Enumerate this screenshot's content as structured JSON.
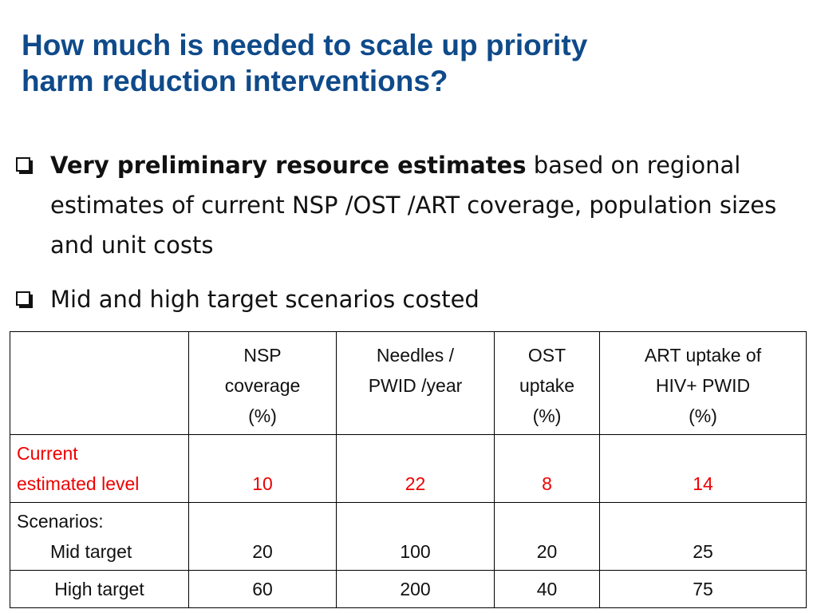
{
  "title": {
    "line1": "How much is needed to scale up priority",
    "line2": "harm reduction interventions?"
  },
  "bullets": [
    {
      "icon": "checkbox-icon",
      "bold_text": "Very preliminary resource estimates",
      "text": " based on regional estimates of current NSP /OST /ART coverage, population sizes and unit costs"
    },
    {
      "icon": "checkbox-icon",
      "bold_text": "",
      "text": "Mid and high target scenarios costed"
    }
  ],
  "table": {
    "headers": [
      {
        "lines": [
          ""
        ]
      },
      {
        "lines": [
          "NSP",
          "coverage",
          "(%)"
        ]
      },
      {
        "lines": [
          "Needles /",
          "PWID /year"
        ]
      },
      {
        "lines": [
          "OST",
          "uptake",
          "(%)"
        ]
      },
      {
        "lines": [
          "ART uptake of",
          "HIV+ PWID",
          "(%)"
        ]
      }
    ],
    "rows": [
      {
        "label_lines": [
          "Current",
          "estimated level"
        ],
        "values": [
          "10",
          "22",
          "8",
          "14"
        ]
      },
      {
        "label_lines": [
          "Scenarios:",
          "Mid target"
        ],
        "values": [
          "20",
          "100",
          "20",
          "25"
        ]
      },
      {
        "label_lines": [
          "High target"
        ],
        "values": [
          "60",
          "200",
          "40",
          "75"
        ]
      }
    ]
  },
  "colors": {
    "title": "#0f4a8a",
    "current_row": "#ee0000"
  }
}
